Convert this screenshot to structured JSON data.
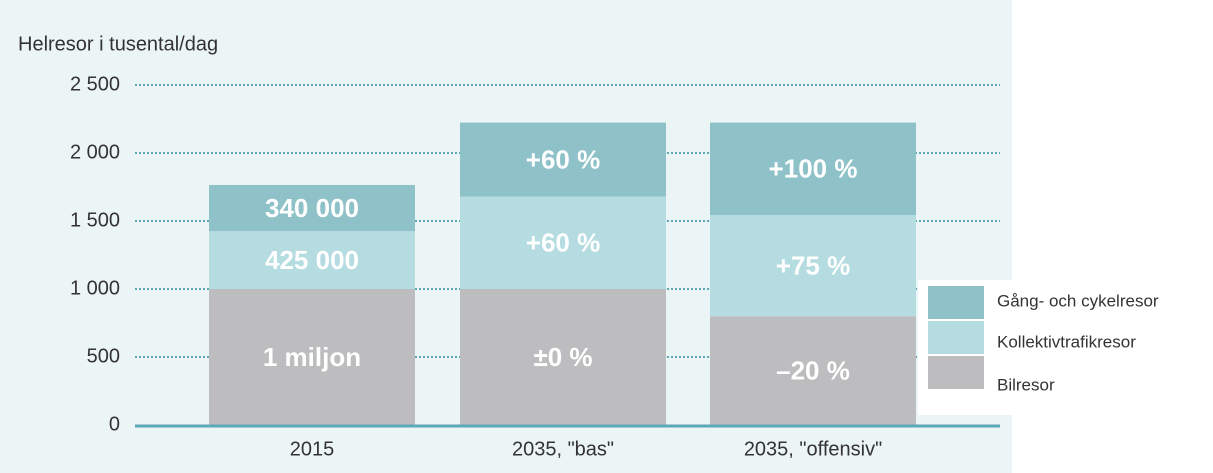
{
  "chart_data": {
    "type": "stacked_bar",
    "y_axis_label": "Helresor i tusental/dag",
    "categories": [
      "2015",
      "2035, \"bas\"",
      "2035, \"offensiv\""
    ],
    "series": [
      {
        "name": "Bilresor",
        "color": "#bdbdbf",
        "values": [
          1000,
          1000,
          800
        ],
        "segment_labels": [
          "1 miljon",
          "±0 %",
          "–20 %"
        ]
      },
      {
        "name": "Kollektivtrafikresor",
        "color": "#b5dce1",
        "values": [
          425,
          680,
          744
        ],
        "segment_labels": [
          "425 000",
          "+60 %",
          "+75 %"
        ]
      },
      {
        "name": "Gång- och cykelresor",
        "color": "#8ec2c8",
        "values": [
          340,
          544,
          680
        ],
        "segment_labels": [
          "340 000",
          "+60 %",
          "+100 %"
        ]
      }
    ],
    "ylim": [
      0,
      2500
    ],
    "yticks": [
      0,
      500,
      {
        "value": 1000,
        "label": "1 000"
      },
      {
        "value": 1500,
        "label": "1 500"
      },
      {
        "value": 2000,
        "label": "2 000"
      },
      {
        "value": 2500,
        "label": "2 500"
      }
    ],
    "grid": true,
    "legend": "right"
  }
}
